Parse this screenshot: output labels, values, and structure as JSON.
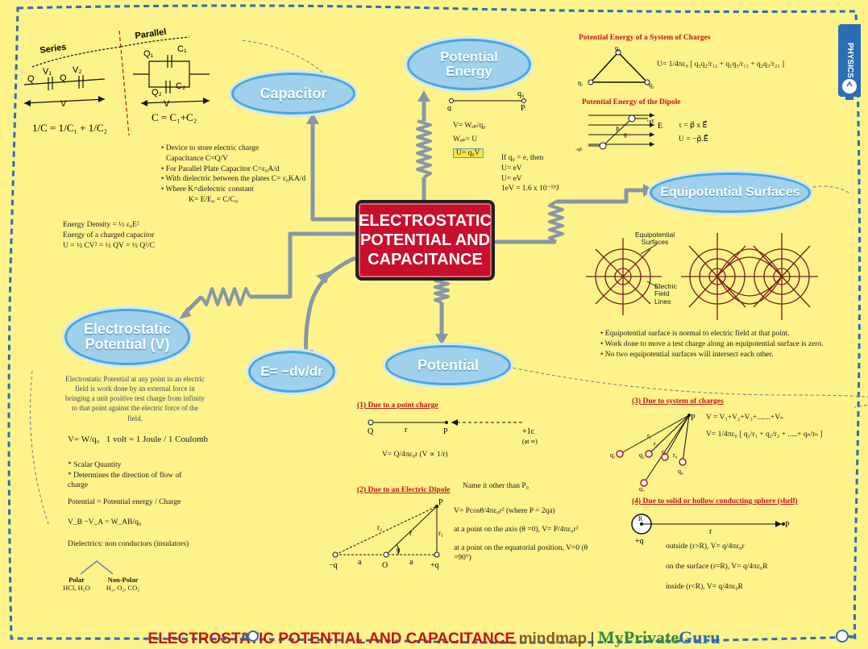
{
  "center_title": [
    "ELECTROSTATIC",
    "POTENTIAL AND",
    "CAPACITANCE"
  ],
  "nodes": {
    "capacitor": "Capacitor",
    "potential_energy": [
      "Potential",
      "Energy"
    ],
    "equipotential": "Equipotential Surfaces",
    "electrostatic_potential": [
      "Electrostatic",
      "Potential (V)"
    ],
    "potential": "Potential",
    "field_relation": "E= −dv/dr"
  },
  "side_tab": "PHYSICS",
  "capacitor_diagram": {
    "series_label": "Series",
    "parallel_label": "Parallel",
    "q": "Q",
    "v1": "V₁",
    "v2": "V₂",
    "v": "V",
    "q1": "Q₁",
    "q2": "Q₂",
    "c1": "C₁",
    "c2": "C₂",
    "series_formula": "1/C = 1/C₁ + 1/C₂",
    "parallel_formula": "C = C₁+C₂"
  },
  "capacitor_notes": [
    "Device to store electric charge",
    "Capacitance C=Q/V",
    "For Parallel Plate Capacitor C=ε₀A/d",
    "With dielectric between the plates C= ε₀KA/d",
    "Where K=dielectric constant",
    "K= E/E₀ = C/C₀"
  ],
  "energy_notes": [
    "Energy Density = ½ ε₀E²",
    "Energy of a charged capacitor",
    "U = ½ CV² = ½ QV = ½ Q²/C"
  ],
  "potential_energy_notes": {
    "q": "q",
    "q0": "q₀",
    "p": "P",
    "v_eq": "V= Wₑₚ/q₀",
    "wep_eq": "Wₑₚ= U",
    "u_eq": "U= q₀V",
    "if_q0": "If q₀ = e, then",
    "u_ev1": "U= eV",
    "u_ev2": "U= eV",
    "ev_def": "1eV = 1.6 x 10⁻¹⁹J"
  },
  "system_charges": {
    "title": "Potential Energy of a System of Charges",
    "formula": "U= 1/4πε₀ [ q₁q₂/r₁₂ + q₁q₃/r₁₃ + q₂q₃/r₂₃ ]",
    "q1": "q₁",
    "q2": "q₂",
    "q3": "q₃"
  },
  "dipole_energy": {
    "title": "Potential Energy of the Dipole",
    "torque": "τ = p⃗ x E⃗",
    "energy": "U = −p⃗.E⃗",
    "e_label": "E",
    "plus_qe": "+qE",
    "minus_qe": "-qE",
    "p_label": "P",
    "theta": "θ"
  },
  "equipotential_notes": {
    "surfaces_label": [
      "Equipotential",
      "Surfaces"
    ],
    "field_label": [
      "Electric",
      "Field",
      "Lines"
    ],
    "points": [
      "Equipotential surface is normal to electric field at that point.",
      "Work done to move a test charge along an equipotential surface is zero.",
      "No two equipotential surfaces will intersect each other."
    ]
  },
  "electrostatic_potential_notes": {
    "definition": "Electrostatic Potential at any point in an electric field is work done by an external force in bringing a unit positive test charge from infinity to that point against the electric force of the field.",
    "v_eq": "V= W/q₀",
    "volt_eq": "1 volt = 1 Joule / 1 Coulomb",
    "scalar": "Scalar Quantity",
    "direction": "Determines the direction of flow of charge",
    "potential_eq": "Potential = Potential energy / Charge",
    "vb_va": "V_B −V_A = W_AB/q₀",
    "dielectrics": "Dielectrics: non conductors (insulators)",
    "polar": "Polar",
    "polar_ex": "HCl, H₂O",
    "nonpolar": "Non-Polar",
    "nonpolar_ex": "H₂, O₂, CO₂"
  },
  "point_charge": {
    "title": "(1) Due to a point charge",
    "q": "Q",
    "r": "r",
    "p": "P",
    "test": "+1c",
    "inf": "(at ∞)",
    "formula": "V= Q/4πε₀r   (V ∝ 1/r)"
  },
  "dipole": {
    "title": "(2) Due to an Electric Dipole",
    "name_note": "Name it other than P₀",
    "p": "P",
    "formula": "V= Pcosθ/4πε₀r²  (where P = 2qa)",
    "axis": "at a point on the axis (θ =0), V= P/4πε₀r²",
    "equatorial": "at a point on the equatorial position, V=0 (θ =90°)",
    "minus_q": "−q",
    "plus_q": "+q",
    "o": "O",
    "a1": "a",
    "a2": "a",
    "r": "r",
    "r1": "r₁",
    "r2": "r₂",
    "theta": "θ"
  },
  "system_potential": {
    "title": "(3) Due to system of charges",
    "p": "P",
    "sum": "V = V₁+V₂+V₃+.......+Vₙ",
    "formula": "V= 1/4πε₀ [ q₁/r₁ + q₂/r₂ + .....+ qₙ/rₙ ]",
    "q1": "q₁",
    "q2": "q₂",
    "q3": "q₃",
    "q4": "q₄",
    "r1": "r₁",
    "r2": "r₂",
    "r3": "r₃",
    "r4": "r₄"
  },
  "sphere": {
    "title": "(4) Due to solid or hollow conducting sphere (shell)",
    "r_big": "R",
    "r": "r",
    "p": "P",
    "plus_q": "+q",
    "outside": "outside (r>R),  V= q/4πε₀r",
    "surface": "on the surface (r=R),  V= q/4πε₀R",
    "inside": "inside (r<R),  V= q/4πε₀R"
  },
  "footer": {
    "title": "ELECTROSTATIC POTENTIAL AND CAPACITANCE",
    "mindmap": "mindmap",
    "sep": "|",
    "brand_my": "My",
    "brand_private": "Private",
    "brand_guru": "Guru"
  },
  "colors": {
    "background": "#fdf38a",
    "ellipse_fill": "#9fd0ec",
    "center_red": "#c8102e",
    "heading_red": "#c0141c",
    "connector_gray": "#8a96a6",
    "equip_lines": "#7a1a1a"
  }
}
